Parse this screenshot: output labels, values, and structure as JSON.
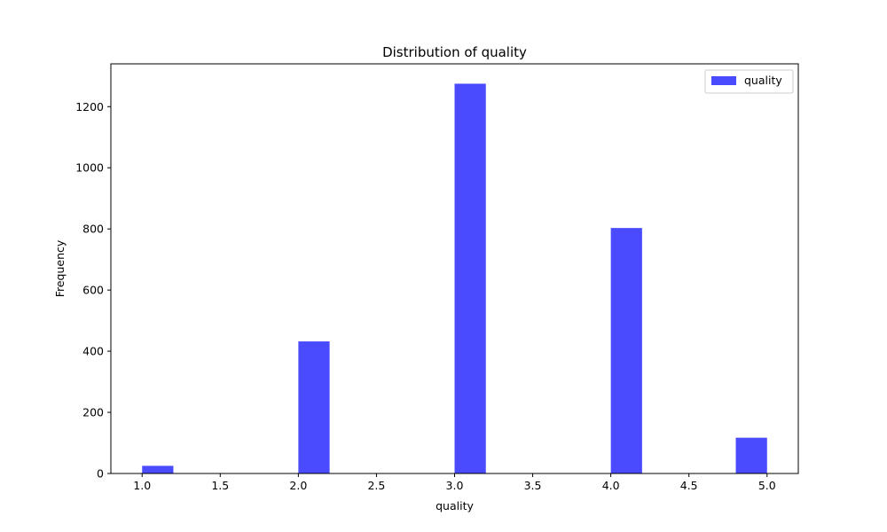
{
  "chart_data": {
    "type": "bar",
    "title": "Distribution of quality",
    "xlabel": "quality",
    "ylabel": "Frequency",
    "xlim": [
      0.8,
      5.2
    ],
    "ylim": [
      0,
      1340
    ],
    "xticks": [
      1.0,
      1.5,
      2.0,
      2.5,
      3.0,
      3.5,
      4.0,
      4.5,
      5.0
    ],
    "xtick_labels": [
      "1.0",
      "1.5",
      "2.0",
      "2.5",
      "3.0",
      "3.5",
      "4.0",
      "4.5",
      "5.0"
    ],
    "yticks": [
      0,
      200,
      400,
      600,
      800,
      1000,
      1200
    ],
    "ytick_labels": [
      "0",
      "200",
      "400",
      "600",
      "800",
      "1000",
      "1200"
    ],
    "bin_width": 0.2,
    "bars": [
      {
        "x_start": 1.0,
        "value": 25
      },
      {
        "x_start": 2.0,
        "value": 432
      },
      {
        "x_start": 3.0,
        "value": 1275
      },
      {
        "x_start": 4.0,
        "value": 803
      },
      {
        "x_start": 4.8,
        "value": 117
      }
    ],
    "series": [
      {
        "name": "quality",
        "color": "#4a4aff"
      }
    ],
    "legend": {
      "position": "top-right",
      "label": "quality"
    },
    "grid": false
  }
}
